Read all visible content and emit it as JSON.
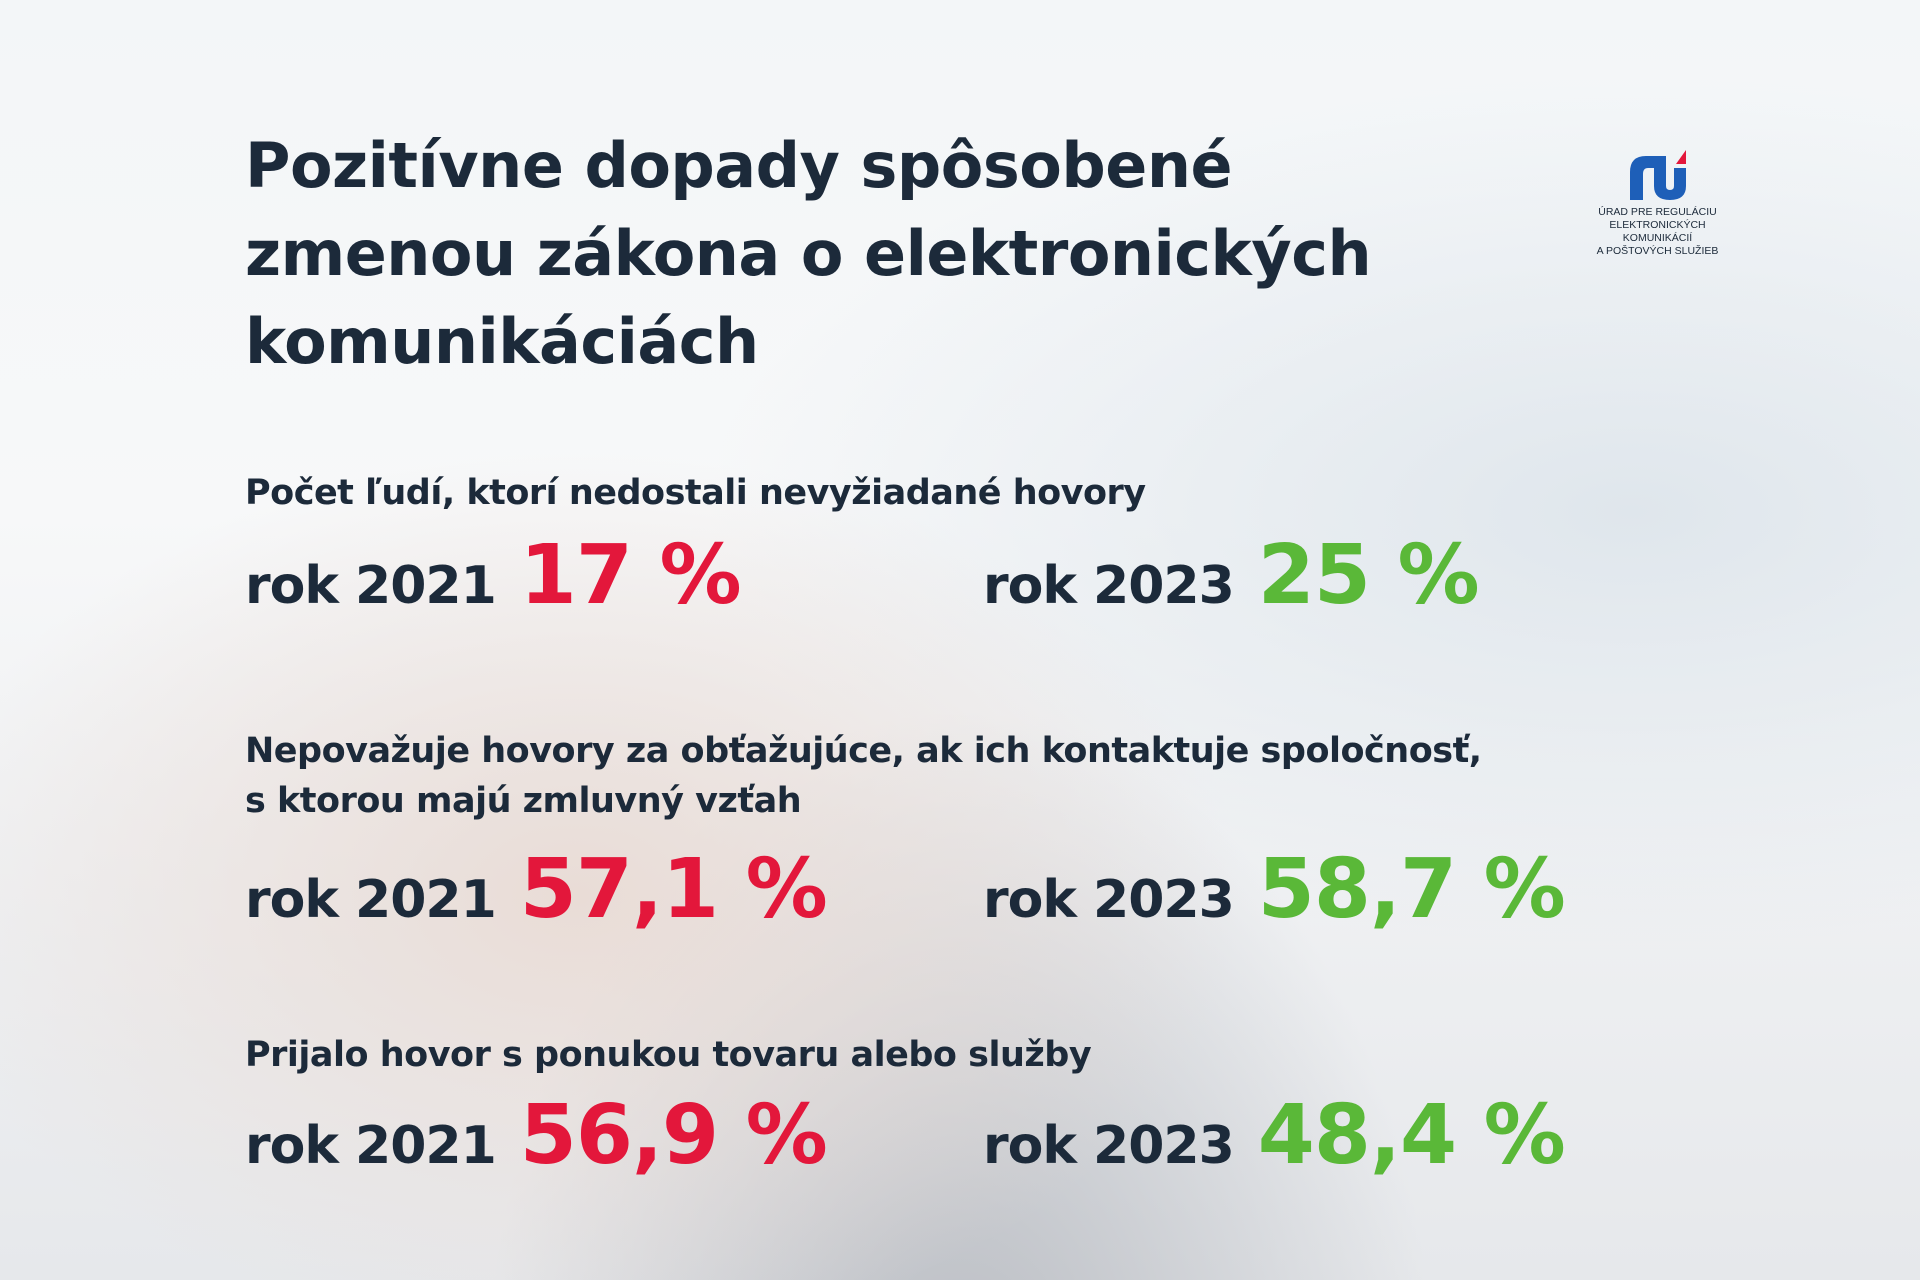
{
  "title": [
    "Pozitívne dopady spôsobené",
    "zmenou zákona o elektronických",
    "komunikáciách"
  ],
  "logo": {
    "text": [
      "ÚRAD PRE REGULÁCIU",
      "ELEKTRONICKÝCH KOMUNIKÁCIÍ",
      "A POŠTOVÝCH SLUŽIEB"
    ],
    "colors": {
      "blue": "#1e5fb8",
      "red": "#e3173b"
    }
  },
  "colors": {
    "text": "#1c2a3a",
    "year_2021": "#e3173b",
    "year_2023": "#5ab838"
  },
  "sections": [
    {
      "heading": [
        "Počet ľudí, ktorí nedostali nevyžiadané hovory"
      ],
      "left_label": "rok 2021",
      "left_value": "17 %",
      "right_label": "rok 2023",
      "right_value": "25 %"
    },
    {
      "heading": [
        "Nepovažuje hovory za obťažujúce, ak ich kontaktuje spoločnosť,",
        "s ktorou majú zmluvný vzťah"
      ],
      "left_label": "rok 2021",
      "left_value": "57,1 %",
      "right_label": "rok 2023",
      "right_value": "58,7 %"
    },
    {
      "heading": [
        "Prijalo hovor s ponukou tovaru alebo služby"
      ],
      "left_label": "rok 2021",
      "left_value": "56,9 %",
      "right_label": "rok 2023",
      "right_value": "48,4 %"
    }
  ]
}
